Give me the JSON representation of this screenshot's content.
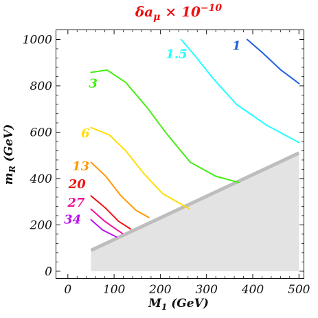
{
  "chart_data": {
    "type": "line",
    "title": "δa_μ × 10^-10",
    "title_parts": {
      "main": "δa",
      "sub": "μ",
      "times": " × 10",
      "sup": "−10"
    },
    "xlabel": {
      "main": "M",
      "sub": "1",
      "rest": " (GeV)"
    },
    "ylabel": {
      "main": "m",
      "sub": "R",
      "rest": " (GeV)"
    },
    "xlim": [
      -25,
      510
    ],
    "ylim": [
      -30,
      1040
    ],
    "xticks": [
      0,
      100,
      200,
      300,
      400,
      500
    ],
    "yticks": [
      0,
      200,
      400,
      600,
      800,
      1000
    ],
    "grid": false,
    "excluded_region": {
      "color": "#e3e3e3",
      "edge_color": "#bdbdbd",
      "boundary": [
        [
          50,
          90
        ],
        [
          500,
          510
        ]
      ],
      "fill_to": [
        [
          500,
          0
        ],
        [
          50,
          0
        ]
      ]
    },
    "series": [
      {
        "name": "1",
        "color": "#1f5fe0",
        "label_at": [
          365,
          955
        ],
        "points": [
          [
            388,
            1000
          ],
          [
            420,
            945
          ],
          [
            460,
            870
          ],
          [
            500,
            810
          ]
        ]
      },
      {
        "name": "1.5",
        "color": "#22ffff",
        "label_at": [
          235,
          920
        ],
        "points": [
          [
            245,
            1000
          ],
          [
            275,
            930
          ],
          [
            315,
            830
          ],
          [
            365,
            720
          ],
          [
            430,
            630
          ],
          [
            500,
            555
          ]
        ]
      },
      {
        "name": "3",
        "color": "#44ee11",
        "label_at": [
          55,
          793
        ],
        "points": [
          [
            50,
            858
          ],
          [
            85,
            868
          ],
          [
            125,
            815
          ],
          [
            170,
            710
          ],
          [
            215,
            590
          ],
          [
            265,
            470
          ],
          [
            320,
            410
          ],
          [
            370,
            383
          ]
        ]
      },
      {
        "name": "6",
        "color": "#ffdd00",
        "label_at": [
          38,
          578
        ],
        "points": [
          [
            50,
            620
          ],
          [
            90,
            588
          ],
          [
            125,
            520
          ],
          [
            165,
            420
          ],
          [
            205,
            335
          ],
          [
            262,
            270
          ]
        ]
      },
      {
        "name": "13",
        "color": "#ff9900",
        "label_at": [
          28,
          435
        ],
        "points": [
          [
            50,
            470
          ],
          [
            82,
            410
          ],
          [
            115,
            325
          ],
          [
            148,
            262
          ],
          [
            175,
            232
          ]
        ]
      },
      {
        "name": "20",
        "color": "#ee1111",
        "label_at": [
          20,
          358
        ],
        "points": [
          [
            50,
            325
          ],
          [
            80,
            275
          ],
          [
            110,
            215
          ],
          [
            136,
            182
          ]
        ]
      },
      {
        "name": "27",
        "color": "#ee1199",
        "label_at": [
          18,
          278
        ],
        "points": [
          [
            50,
            268
          ],
          [
            78,
            218
          ],
          [
            105,
            180
          ],
          [
            118,
            163
          ]
        ]
      },
      {
        "name": "34",
        "color": "#bb11ee",
        "label_at": [
          10,
          206
        ],
        "points": [
          [
            50,
            222
          ],
          [
            75,
            178
          ],
          [
            95,
            158
          ],
          [
            105,
            148
          ]
        ]
      }
    ]
  }
}
